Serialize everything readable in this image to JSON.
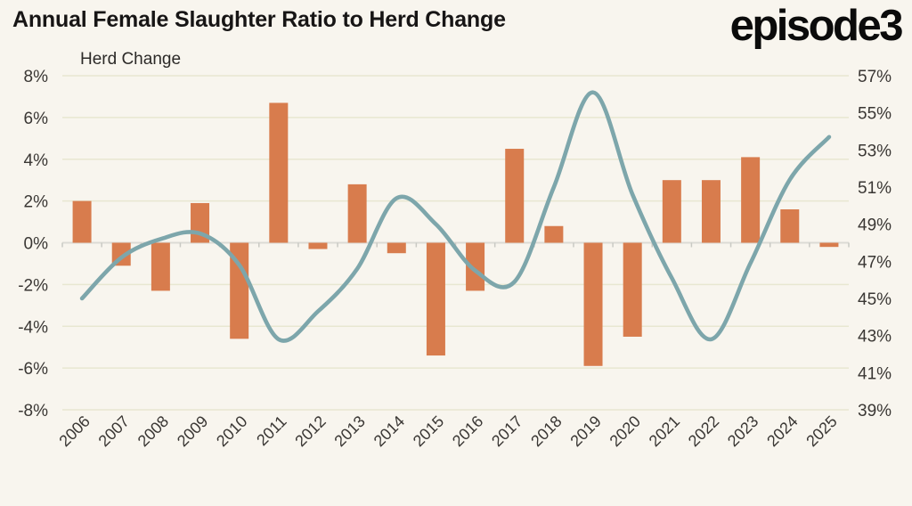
{
  "header": {
    "title": "Annual Female Slaughter Ratio to Herd Change",
    "logo": "episode3"
  },
  "chart_data": {
    "type": "bar+line",
    "title": "Annual Female Slaughter Ratio to Herd Change",
    "grid": true,
    "background": "#f8f5ee",
    "gridline_color": "#e8e7d1",
    "zero_line_color": "#dbdbd5",
    "tick_mark_color": "#c9c9c3",
    "text_color": "#3a3734",
    "left_axis": {
      "label": "Herd Change",
      "range": [
        -8,
        8
      ],
      "ticks": [
        "8%",
        "6%",
        "4%",
        "2%",
        "0%",
        "-2%",
        "-4%",
        "-6%",
        "-8%"
      ]
    },
    "right_axis": {
      "range": [
        39,
        57
      ],
      "ticks": [
        "57%",
        "55%",
        "53%",
        "51%",
        "49%",
        "47%",
        "45%",
        "43%",
        "41%",
        "39%"
      ]
    },
    "categories": [
      "2006",
      "2007",
      "2008",
      "2009",
      "2010",
      "2011",
      "2012",
      "2013",
      "2014",
      "2015",
      "2016",
      "2017",
      "2018",
      "2019",
      "2020",
      "2021",
      "2022",
      "2023",
      "2024",
      "2025"
    ],
    "series": [
      {
        "name": "Herd Change",
        "type": "bar",
        "axis": "left",
        "color": "#d87c4d",
        "values": [
          2.0,
          -1.1,
          -2.3,
          1.9,
          -4.6,
          6.7,
          -0.3,
          2.8,
          -0.5,
          -5.4,
          -2.3,
          4.5,
          0.8,
          -5.9,
          -4.5,
          3.0,
          3.0,
          4.1,
          1.6,
          -0.2
        ]
      },
      {
        "name": "Annual Female Slaughter Ratio",
        "type": "line",
        "axis": "right",
        "color": "#7da6ab",
        "values": [
          45.0,
          47.2,
          48.2,
          48.5,
          46.8,
          42.8,
          44.3,
          46.6,
          50.4,
          49.0,
          46.5,
          45.9,
          51.0,
          56.1,
          50.6,
          46.1,
          42.8,
          46.9,
          51.4,
          53.7
        ]
      }
    ]
  }
}
